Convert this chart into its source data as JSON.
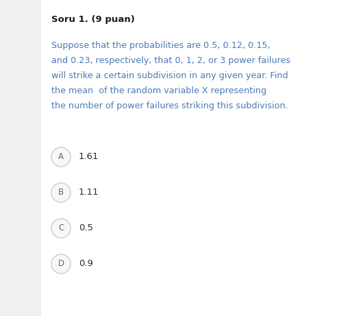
{
  "title": "Soru 1. (9 puan)",
  "question_lines": [
    "Suppose that the probabilities are 0.5, 0.12, 0.15,",
    "and 0.23, respectively, that 0, 1, 2, or 3 power failures",
    "will strike a certain subdivision in any given year. Find",
    "the mean  of the random variable X representing",
    "the number of power failures striking this subdivision."
  ],
  "options": [
    {
      "label": "A",
      "text": "1.61"
    },
    {
      "label": "B",
      "text": "1.11"
    },
    {
      "label": "C",
      "text": "0.5"
    },
    {
      "label": "D",
      "text": "0.9"
    }
  ],
  "bg_color": "#f0f0f0",
  "content_bg": "#ffffff",
  "title_color": "#1a1a1a",
  "question_color": "#4a7ab5",
  "option_label_color": "#666666",
  "option_text_color": "#2a2a2a",
  "circle_edge_color": "#cccccc",
  "circle_face_color": "#f8f8f8",
  "title_fontsize": 9.5,
  "question_fontsize": 9.2,
  "option_fontsize": 9.5,
  "fig_width": 5.17,
  "fig_height": 4.61,
  "dpi": 100
}
